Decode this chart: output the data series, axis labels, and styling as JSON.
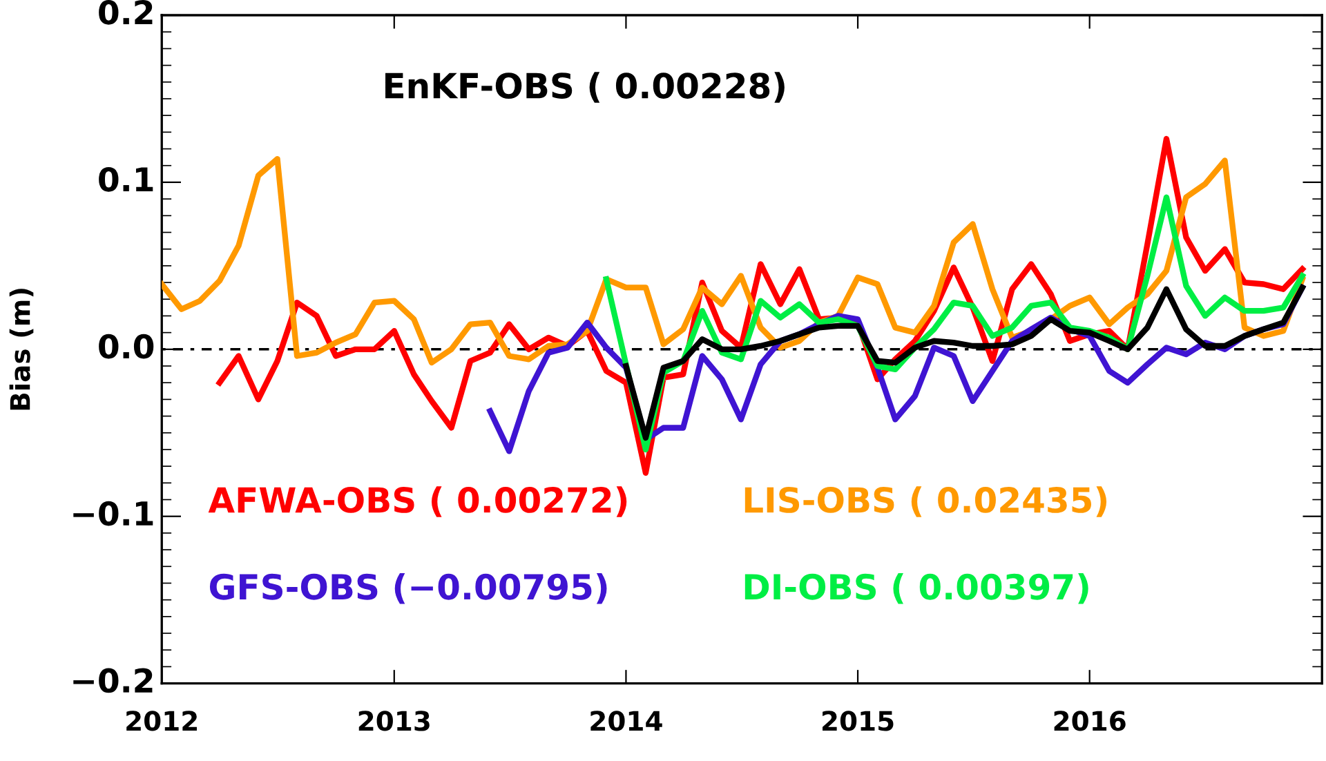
{
  "chart_data": {
    "type": "line",
    "ylabel": "Bias (m)",
    "x": [
      "2012-01",
      "2012-02",
      "2012-03",
      "2012-04",
      "2012-05",
      "2012-06",
      "2012-07",
      "2012-08",
      "2012-09",
      "2012-10",
      "2012-11",
      "2012-12",
      "2013-01",
      "2013-02",
      "2013-03",
      "2013-04",
      "2013-05",
      "2013-06",
      "2013-07",
      "2013-08",
      "2013-09",
      "2013-10",
      "2013-11",
      "2013-12",
      "2014-01",
      "2014-02",
      "2014-03",
      "2014-04",
      "2014-05",
      "2014-06",
      "2014-07",
      "2014-08",
      "2014-09",
      "2014-10",
      "2014-11",
      "2014-12",
      "2015-01",
      "2015-02",
      "2015-03",
      "2015-04",
      "2015-05",
      "2015-06",
      "2015-07",
      "2015-08",
      "2015-09",
      "2015-10",
      "2015-11",
      "2015-12",
      "2016-01",
      "2016-02",
      "2016-03",
      "2016-04",
      "2016-05",
      "2016-06",
      "2016-07",
      "2016-08",
      "2016-09",
      "2016-10",
      "2016-11",
      "2016-12"
    ],
    "xlim": [
      "2012-01",
      "2017-01"
    ],
    "xticks": [
      "2012",
      "2013",
      "2014",
      "2015",
      "2016"
    ],
    "ylim": [
      -0.2,
      0.2
    ],
    "yticks": [
      {
        "value": -0.2,
        "label": "−0.2"
      },
      {
        "value": -0.1,
        "label": "−0.1"
      },
      {
        "value": 0.0,
        "label": "0.0"
      },
      0.1,
      0.2
    ],
    "grid": false,
    "marker": "none",
    "line_style": "solid",
    "ref_lines": [
      {
        "axis": "y",
        "value": 0,
        "label": null,
        "color": "#000000",
        "line_style": "dotted"
      }
    ],
    "series": [
      {
        "name": "EnKF-OBS ( 0.00228)",
        "color": "#000000",
        "values": [
          null,
          null,
          null,
          null,
          null,
          null,
          null,
          null,
          null,
          null,
          null,
          null,
          null,
          null,
          null,
          null,
          null,
          null,
          null,
          null,
          null,
          null,
          null,
          null,
          -0.01,
          -0.053,
          -0.011,
          -0.007,
          0.006,
          0.0,
          0.0,
          0.002,
          0.005,
          0.009,
          0.013,
          0.014,
          0.014,
          -0.007,
          -0.008,
          0.001,
          0.005,
          0.004,
          0.002,
          0.002,
          0.003,
          0.008,
          0.018,
          0.011,
          0.01,
          0.005,
          0.0,
          0.013,
          0.036,
          0.012,
          0.002,
          0.002,
          0.008,
          0.012,
          0.016,
          0.037
        ]
      },
      {
        "name": "AFWA-OBS ( 0.00272)",
        "color": "#ff0000",
        "values": [
          null,
          null,
          null,
          -0.02,
          -0.004,
          -0.03,
          -0.007,
          0.028,
          0.02,
          -0.004,
          0.0,
          0.0,
          0.011,
          -0.015,
          -0.031,
          -0.047,
          -0.007,
          -0.002,
          0.015,
          0.0,
          0.007,
          0.002,
          0.011,
          -0.013,
          -0.02,
          -0.074,
          -0.017,
          -0.015,
          0.04,
          0.011,
          0.001,
          0.051,
          0.027,
          0.048,
          0.018,
          0.019,
          0.016,
          -0.018,
          -0.006,
          0.005,
          0.023,
          0.049,
          0.025,
          -0.007,
          0.036,
          0.051,
          0.033,
          0.005,
          0.009,
          0.011,
          0.0,
          0.063,
          0.126,
          0.067,
          0.047,
          0.06,
          0.04,
          0.039,
          0.036,
          0.048
        ]
      },
      {
        "name": "LIS-OBS ( 0.02435)",
        "color": "#ff9900",
        "values": [
          0.039,
          0.024,
          0.029,
          0.041,
          0.062,
          0.104,
          0.114,
          -0.004,
          -0.002,
          0.004,
          0.009,
          0.028,
          0.029,
          0.018,
          -0.008,
          0.0,
          0.015,
          0.016,
          -0.004,
          -0.006,
          0.002,
          0.003,
          0.011,
          0.042,
          0.037,
          0.037,
          0.003,
          0.012,
          0.037,
          0.027,
          0.044,
          0.013,
          0.001,
          0.005,
          0.016,
          0.02,
          0.043,
          0.039,
          0.013,
          0.01,
          0.026,
          0.064,
          0.075,
          0.036,
          0.007,
          0.011,
          0.018,
          0.026,
          0.031,
          0.015,
          0.025,
          0.033,
          0.047,
          0.091,
          0.099,
          0.113,
          0.013,
          0.008,
          0.011,
          0.042
        ]
      },
      {
        "name": "GFS-OBS (−0.00795)",
        "color": "#3f14d2",
        "values": [
          null,
          null,
          null,
          null,
          null,
          null,
          null,
          null,
          null,
          null,
          null,
          null,
          null,
          null,
          null,
          null,
          null,
          -0.037,
          -0.061,
          -0.025,
          -0.002,
          0.001,
          0.016,
          0.001,
          -0.011,
          -0.054,
          -0.047,
          -0.047,
          -0.004,
          -0.018,
          -0.042,
          -0.009,
          0.005,
          0.009,
          0.015,
          0.02,
          0.018,
          -0.011,
          -0.042,
          -0.028,
          0.001,
          -0.004,
          -0.031,
          -0.013,
          0.005,
          0.012,
          0.019,
          0.012,
          0.008,
          -0.013,
          -0.02,
          -0.009,
          0.001,
          -0.003,
          0.004,
          0.0,
          0.008,
          0.012,
          0.015,
          0.037
        ]
      },
      {
        "name": "DI-OBS ( 0.00397)",
        "color": "#00ee44",
        "values": [
          null,
          null,
          null,
          null,
          null,
          null,
          null,
          null,
          null,
          null,
          null,
          null,
          null,
          null,
          null,
          null,
          null,
          null,
          null,
          null,
          null,
          null,
          null,
          0.042,
          -0.009,
          -0.06,
          -0.014,
          -0.007,
          0.023,
          -0.002,
          -0.006,
          0.029,
          0.019,
          0.027,
          0.016,
          0.018,
          0.014,
          -0.01,
          -0.012,
          0.001,
          0.012,
          0.028,
          0.026,
          0.008,
          0.013,
          0.026,
          0.028,
          0.013,
          0.011,
          0.007,
          0.0,
          0.044,
          0.091,
          0.038,
          0.02,
          0.031,
          0.023,
          0.023,
          0.025,
          0.044
        ]
      }
    ]
  }
}
